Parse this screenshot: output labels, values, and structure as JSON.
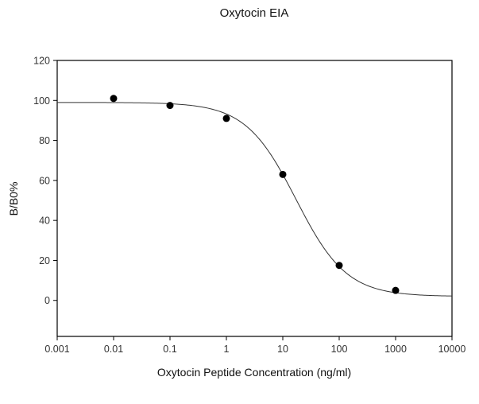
{
  "chart_data": {
    "type": "scatter",
    "title": "Oxytocin EIA",
    "xlabel": "Oxytocin Peptide Concentration (ng/ml)",
    "ylabel": "B/B0%",
    "xscale": "log",
    "xlim": [
      0.001,
      10000
    ],
    "ylim": [
      -18,
      120
    ],
    "xticks": [
      "0.001",
      "0.01",
      "0.1",
      "1",
      "10",
      "100",
      "1000",
      "10000"
    ],
    "xtick_values": [
      0.001,
      0.01,
      0.1,
      1,
      10,
      100,
      1000,
      10000
    ],
    "yticks": [
      "0",
      "20",
      "40",
      "60",
      "80",
      "100",
      "120"
    ],
    "ytick_values": [
      0,
      20,
      40,
      60,
      80,
      100,
      120
    ],
    "grid": false,
    "series": [
      {
        "type": "scatter",
        "x": [
          0.01,
          0.1,
          1,
          10,
          100,
          1000
        ],
        "y": [
          101,
          97.5,
          91,
          63,
          17.5,
          5
        ],
        "color": "#000000"
      }
    ],
    "fit_curve": {
      "model": "four-parameter logistic",
      "top": 99,
      "bottom": 2,
      "ec50": 17.2,
      "hill": 0.97,
      "color": "#333333"
    }
  }
}
